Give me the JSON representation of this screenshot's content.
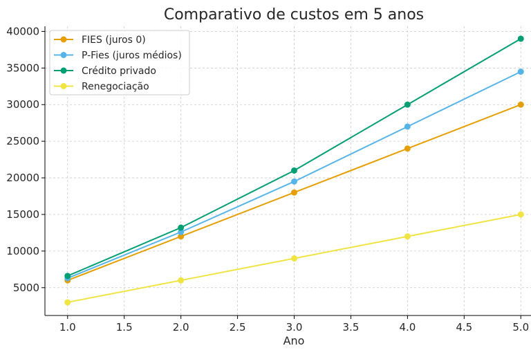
{
  "chart_data": {
    "type": "line",
    "title": "Comparativo de custos em 5 anos",
    "xlabel": "Ano",
    "ylabel": "",
    "x": [
      1,
      2,
      3,
      4,
      5
    ],
    "xlim": [
      0.8,
      5.09
    ],
    "ylim": [
      1200,
      40700
    ],
    "xticks": [
      "1.0",
      "1.5",
      "2.0",
      "2.5",
      "3.0",
      "3.5",
      "4.0",
      "4.5",
      "5.0"
    ],
    "yticks": [
      "5000",
      "10000",
      "15000",
      "20000",
      "25000",
      "30000",
      "35000",
      "40000"
    ],
    "grid": true,
    "legend_position": "top-left",
    "series": [
      {
        "name": "FIES (juros 0)",
        "color": "#E69F00",
        "values": [
          6000,
          12000,
          18000,
          24000,
          30000
        ]
      },
      {
        "name": "P-Fies (juros médios)",
        "color": "#56B4E9",
        "values": [
          6300,
          12600,
          19500,
          27000,
          34500
        ]
      },
      {
        "name": "Crédito privado",
        "color": "#009E73",
        "values": [
          6600,
          13200,
          21000,
          30000,
          39000
        ]
      },
      {
        "name": "Renegociação",
        "color": "#F0E442",
        "values": [
          3000,
          6000,
          9000,
          12000,
          15000
        ]
      }
    ]
  }
}
